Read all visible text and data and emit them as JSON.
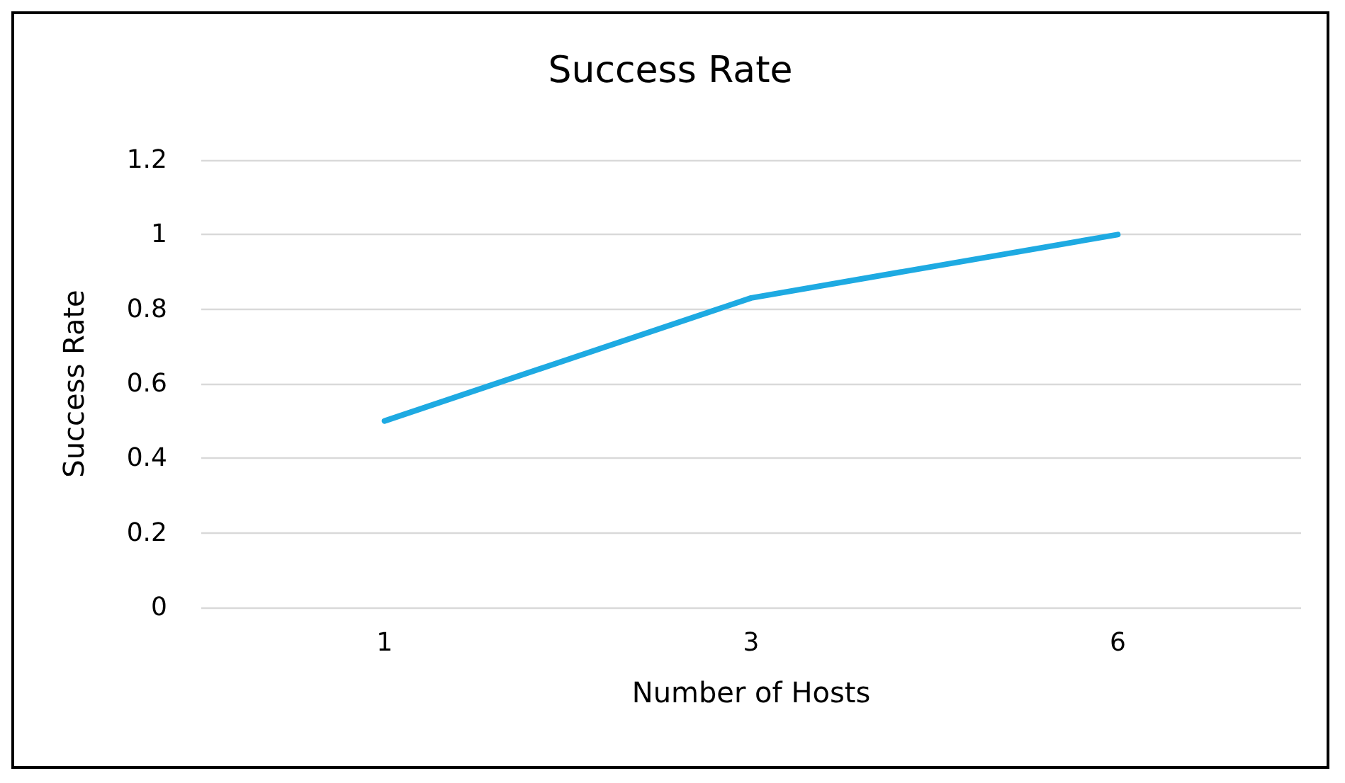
{
  "chart_data": {
    "type": "line",
    "title": "Success Rate",
    "xlabel": "Number of Hosts",
    "ylabel": "Success Rate",
    "categories": [
      "1",
      "3",
      "6"
    ],
    "series": [
      {
        "color": "#1eaae2",
        "values": [
          0.5,
          0.83,
          1
        ]
      }
    ],
    "ylim": [
      0,
      1.2
    ],
    "yticks": [
      0,
      0.2,
      0.4,
      0.6,
      0.8,
      1,
      1.2
    ],
    "grid": "y",
    "marker": "none",
    "line_style": "solid"
  }
}
